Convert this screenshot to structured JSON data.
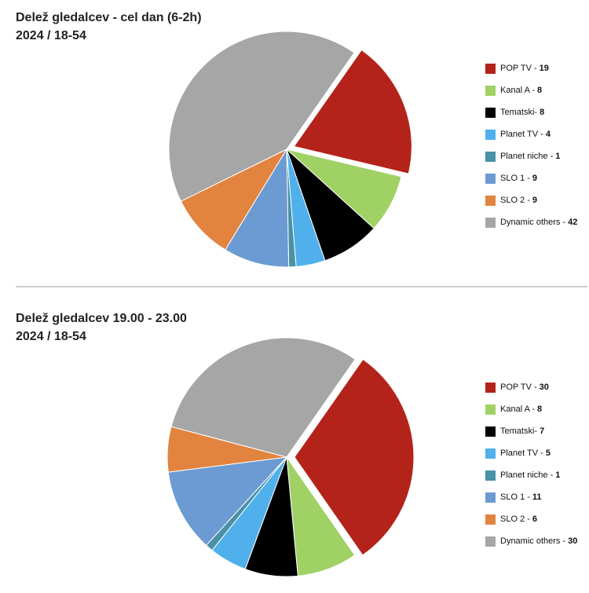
{
  "chart_data": [
    {
      "type": "pie",
      "title": "Delež gledalcev - cel dan (6-2h)",
      "subtitle": "2024 / 18-54",
      "categories": [
        "POP TV -",
        "Kanal A -",
        "Tematski-",
        "Planet TV -",
        "Planet niche -",
        "SLO 1 -",
        "SLO 2 -",
        "Dynamic others  -"
      ],
      "values": [
        19,
        8,
        8,
        4,
        1,
        9,
        9,
        42
      ],
      "colors": [
        "#b3231a",
        "#9fd165",
        "#000000",
        "#4fb0ec",
        "#4a90a8",
        "#6b9bd2",
        "#e2843f",
        "#a6a6a6"
      ]
    },
    {
      "type": "pie",
      "title": "Delež gledalcev 19.00 - 23.00",
      "subtitle": "2024 / 18-54",
      "categories": [
        "POP TV -",
        "Kanal A -",
        "Tematski-",
        "Planet TV -",
        "Planet niche -",
        "SLO 1 -",
        "SLO 2 -",
        "Dynamic others  -"
      ],
      "values": [
        30,
        8,
        7,
        5,
        1,
        11,
        6,
        30
      ],
      "colors": [
        "#b3231a",
        "#9fd165",
        "#000000",
        "#4fb0ec",
        "#4a90a8",
        "#6b9bd2",
        "#e2843f",
        "#a6a6a6"
      ]
    }
  ]
}
